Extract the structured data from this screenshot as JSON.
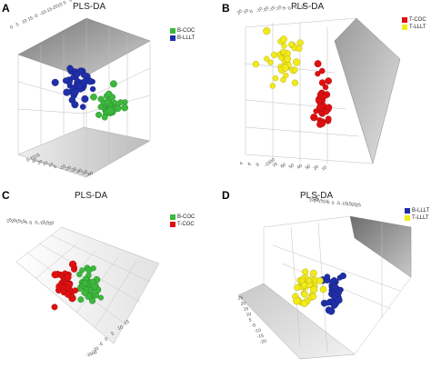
{
  "panels": [
    {
      "letter": "A",
      "title": "PLS-DA",
      "legend": [
        {
          "label": "B-COC",
          "color": "#3cb83c"
        },
        {
          "label": "B-LLLT",
          "color": "#1f2fa8"
        }
      ]
    },
    {
      "letter": "B",
      "title": "PLS-DA",
      "legend": [
        {
          "label": "T-COC",
          "color": "#e01010"
        },
        {
          "label": "T-LLLT",
          "color": "#f2ea1a"
        }
      ]
    },
    {
      "letter": "C",
      "title": "PLS-DA",
      "legend": [
        {
          "label": "B-COC",
          "color": "#3cb83c"
        },
        {
          "label": "T-COC",
          "color": "#e01010"
        }
      ]
    },
    {
      "letter": "D",
      "title": "PLS-DA",
      "legend": [
        {
          "label": "B-LLLT",
          "color": "#1f2fa8"
        },
        {
          "label": "T-LLLT",
          "color": "#f2ea1a"
        }
      ]
    }
  ],
  "chart_data": [
    {
      "type": "scatter",
      "title": "PLS-DA",
      "dimensions": 3,
      "series": [
        {
          "name": "B-COC",
          "color": "#3cb83c",
          "cluster_center": [
            122,
            115
          ],
          "cluster_spread": [
            16,
            20
          ],
          "count": 38
        },
        {
          "name": "B-LLLT",
          "color": "#1f2fa8",
          "cluster_center": [
            85,
            95
          ],
          "cluster_spread": [
            16,
            20
          ],
          "count": 38
        }
      ],
      "tick_labels": [
        "0",
        "5",
        "10",
        "15",
        "-5",
        "-10",
        "-15",
        "-20",
        "10",
        "5",
        "0",
        "-10",
        "-15",
        "0-1015",
        "40",
        "30",
        "20",
        "10",
        "0",
        "-10",
        "-20",
        "-30",
        "-40",
        "-50",
        "-60"
      ]
    },
    {
      "type": "scatter",
      "title": "PLS-DA",
      "dimensions": 3,
      "series": [
        {
          "name": "T-COC",
          "color": "#e01010",
          "cluster_center": [
            355,
            110
          ],
          "cluster_spread": [
            10,
            32
          ],
          "count": 38
        },
        {
          "name": "T-LLLT",
          "color": "#f2ea1a",
          "cluster_center": [
            312,
            70
          ],
          "cluster_spread": [
            22,
            28
          ],
          "count": 38
        }
      ],
      "tick_labels": [
        "20",
        "10",
        "0",
        "-10",
        "-20",
        "-15",
        "-10",
        "-5",
        "0",
        "5",
        "10",
        "4",
        "6",
        "8",
        "-1500",
        "70",
        "60",
        "50",
        "40",
        "30",
        "20",
        "10"
      ]
    },
    {
      "type": "scatter",
      "title": "PLS-DA",
      "dimensions": 3,
      "series": [
        {
          "name": "B-COC",
          "color": "#3cb83c",
          "cluster_center": [
            98,
            318
          ],
          "cluster_spread": [
            14,
            22
          ],
          "count": 38
        },
        {
          "name": "T-COC",
          "color": "#e01010",
          "cluster_center": [
            72,
            312
          ],
          "cluster_spread": [
            14,
            22
          ],
          "count": 38
        }
      ],
      "tick_labels": [
        "25",
        "20",
        "15",
        "10",
        "5",
        "0",
        "-5",
        "-10",
        "-15",
        "-20",
        "-1500",
        "-10",
        "-5",
        "0",
        "5",
        "10",
        "15"
      ]
    },
    {
      "type": "scatter",
      "title": "PLS-DA",
      "dimensions": 3,
      "series": [
        {
          "name": "B-LLLT",
          "color": "#1f2fa8",
          "cluster_center": [
            368,
            318
          ],
          "cluster_spread": [
            12,
            24
          ],
          "count": 38
        },
        {
          "name": "T-LLLT",
          "color": "#f2ea1a",
          "cluster_center": [
            338,
            315
          ],
          "cluster_spread": [
            14,
            20
          ],
          "count": 38
        }
      ],
      "tick_labels": [
        "1025",
        "20",
        "15",
        "10",
        "5",
        "0",
        "-5",
        "-10",
        "-15",
        "-20",
        "-25",
        "25",
        "20",
        "15",
        "10",
        "5",
        "-5",
        "-10",
        "-15",
        "-20"
      ]
    }
  ]
}
